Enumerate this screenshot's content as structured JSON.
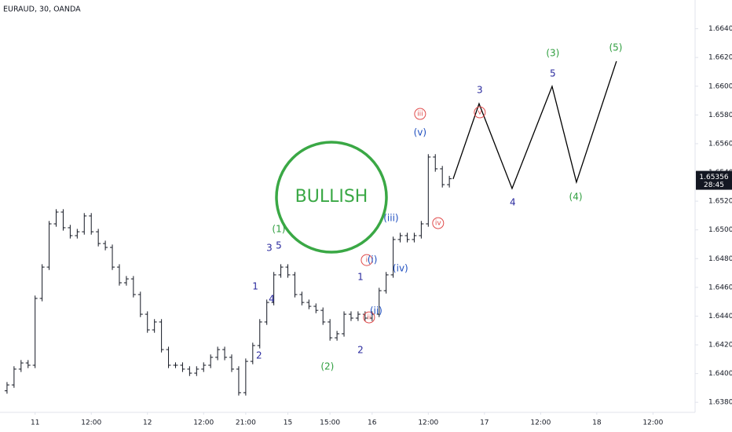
{
  "chart_data": {
    "type": "ohlc",
    "title": "EURAUD, 30, OANDA",
    "x": [
      0,
      3,
      6,
      9,
      12,
      15,
      18,
      21,
      24,
      27,
      30,
      33,
      36,
      39,
      42,
      45,
      48,
      51,
      54,
      57,
      60,
      63,
      66,
      69,
      72,
      75,
      78,
      81,
      84,
      87,
      90,
      93,
      96,
      99,
      102,
      105,
      108,
      111,
      114,
      117,
      120,
      123,
      126,
      129,
      132,
      135,
      138,
      141,
      144,
      147,
      150,
      153,
      156,
      159,
      162,
      165,
      168,
      171,
      174,
      177,
      180,
      183,
      186,
      189
    ],
    "open": [
      1.6388,
      1.63921,
      1.64031,
      1.64074,
      1.64058,
      1.64523,
      1.64741,
      1.65042,
      1.65124,
      1.65015,
      1.6496,
      1.64987,
      1.65097,
      1.64987,
      1.64905,
      1.64878,
      1.64741,
      1.64632,
      1.64659,
      1.6455,
      1.64413,
      1.64304,
      1.64359,
      1.64167,
      1.64058,
      1.64058,
      1.64031,
      1.64003,
      1.64031,
      1.64058,
      1.64113,
      1.64167,
      1.64113,
      1.64031,
      1.63867,
      1.64085,
      1.64195,
      1.64359,
      1.64495,
      1.64687,
      1.64741,
      1.64687,
      1.6455,
      1.64495,
      1.64468,
      1.6444,
      1.64359,
      1.64249,
      1.64277,
      1.64413,
      1.64386,
      1.64413,
      1.64386,
      1.64413,
      1.64577,
      1.64687,
      1.64933,
      1.6496,
      1.64933,
      1.6496,
      1.65042,
      1.65507,
      1.65425,
      1.65315
    ],
    "high": [
      1.63941,
      1.64051,
      1.64094,
      1.64094,
      1.64543,
      1.64761,
      1.65062,
      1.65144,
      1.65144,
      1.65035,
      1.65007,
      1.65117,
      1.65117,
      1.65007,
      1.64925,
      1.64898,
      1.64761,
      1.64679,
      1.64679,
      1.6457,
      1.64433,
      1.64379,
      1.64379,
      1.64187,
      1.64078,
      1.64078,
      1.64051,
      1.64051,
      1.64078,
      1.64133,
      1.64187,
      1.64187,
      1.64133,
      1.64051,
      1.64105,
      1.64215,
      1.64379,
      1.64515,
      1.64707,
      1.64761,
      1.64761,
      1.64707,
      1.6457,
      1.64515,
      1.64488,
      1.6446,
      1.64379,
      1.64297,
      1.64433,
      1.64433,
      1.64433,
      1.64433,
      1.64433,
      1.64597,
      1.64707,
      1.64953,
      1.6498,
      1.6498,
      1.6498,
      1.65062,
      1.65527,
      1.65527,
      1.65445,
      1.65376
    ],
    "low": [
      1.6386,
      1.63901,
      1.64011,
      1.64038,
      1.64038,
      1.64503,
      1.64721,
      1.65022,
      1.64995,
      1.6494,
      1.6494,
      1.64967,
      1.64967,
      1.64885,
      1.64858,
      1.64721,
      1.64612,
      1.64612,
      1.6453,
      1.64393,
      1.64284,
      1.64284,
      1.64147,
      1.64038,
      1.64038,
      1.64011,
      1.63983,
      1.63983,
      1.64011,
      1.64038,
      1.64093,
      1.64093,
      1.64011,
      1.63847,
      1.63847,
      1.64065,
      1.64175,
      1.64339,
      1.64475,
      1.64667,
      1.64667,
      1.6453,
      1.64475,
      1.64448,
      1.6442,
      1.64339,
      1.64229,
      1.64229,
      1.64257,
      1.64366,
      1.64366,
      1.64366,
      1.64366,
      1.64393,
      1.64557,
      1.64667,
      1.64913,
      1.64913,
      1.64913,
      1.6494,
      1.65022,
      1.65405,
      1.65295,
      1.65295
    ],
    "close": [
      1.63921,
      1.64031,
      1.64074,
      1.64058,
      1.64523,
      1.64741,
      1.65042,
      1.65124,
      1.65015,
      1.6496,
      1.64987,
      1.65097,
      1.64987,
      1.64905,
      1.64878,
      1.64741,
      1.64632,
      1.64659,
      1.6455,
      1.64413,
      1.64304,
      1.64359,
      1.64167,
      1.64058,
      1.64058,
      1.64031,
      1.64003,
      1.64031,
      1.64058,
      1.64113,
      1.64167,
      1.64113,
      1.64031,
      1.63867,
      1.64085,
      1.64195,
      1.64359,
      1.64495,
      1.64687,
      1.64741,
      1.64687,
      1.6455,
      1.64495,
      1.64468,
      1.6444,
      1.64359,
      1.64249,
      1.64277,
      1.64413,
      1.64386,
      1.64413,
      1.64386,
      1.64413,
      1.64577,
      1.64687,
      1.64933,
      1.6496,
      1.64933,
      1.6496,
      1.65042,
      1.65507,
      1.65425,
      1.65315,
      1.65356
    ],
    "color": "#131722",
    "projection": {
      "x": [
        190.6,
        201.7,
        215.8,
        232.9,
        243.3,
        260.4
      ],
      "values": [
        1.65354,
        1.65878,
        1.65288,
        1.65999,
        1.65332,
        1.66174
      ],
      "color": "#000000"
    },
    "xlim": [
      -3,
      294
    ],
    "ylim": [
      1.6373,
      1.666
    ],
    "xticks": [
      {
        "value": 12,
        "label": "11"
      },
      {
        "value": 36,
        "label": "12:00"
      },
      {
        "value": 60,
        "label": "12"
      },
      {
        "value": 84,
        "label": "12:00"
      },
      {
        "value": 102,
        "label": "21:00"
      },
      {
        "value": 120,
        "label": "15"
      },
      {
        "value": 138,
        "label": "15:00"
      },
      {
        "value": 156,
        "label": "16"
      },
      {
        "value": 180,
        "label": "12:00"
      },
      {
        "value": 204,
        "label": "17"
      },
      {
        "value": 228,
        "label": "12:00"
      },
      {
        "value": 252,
        "label": "18"
      },
      {
        "value": 276,
        "label": "12:00"
      }
    ],
    "yticks": [
      {
        "value": 1.638,
        "label": "1.63800"
      },
      {
        "value": 1.64,
        "label": "1.64000"
      },
      {
        "value": 1.642,
        "label": "1.64200"
      },
      {
        "value": 1.644,
        "label": "1.64400"
      },
      {
        "value": 1.646,
        "label": "1.64600"
      },
      {
        "value": 1.648,
        "label": "1.64800"
      },
      {
        "value": 1.65,
        "label": "1.65000"
      },
      {
        "value": 1.652,
        "label": "1.65200"
      },
      {
        "value": 1.654,
        "label": "1.65400"
      },
      {
        "value": 1.656,
        "label": "1.65600"
      },
      {
        "value": 1.658,
        "label": "1.65800"
      },
      {
        "value": 1.66,
        "label": "1.66000"
      },
      {
        "value": 1.662,
        "label": "1.66200"
      },
      {
        "value": 1.664,
        "label": "1.66400"
      }
    ],
    "grid": false,
    "last_price": 1.65356,
    "countdown": "28:45",
    "badge": "BULLISH",
    "annotations": [
      {
        "text": "(1)",
        "x": 116.1,
        "y": 1.65004,
        "color": "#2e9e3e",
        "circled": false
      },
      {
        "text": "3",
        "x": 112.1,
        "y": 1.64872,
        "color": "#2a2a9e",
        "circled": false
      },
      {
        "text": "5",
        "x": 116.1,
        "y": 1.64889,
        "color": "#2a2a9e",
        "circled": false
      },
      {
        "text": "1",
        "x": 106.1,
        "y": 1.64605,
        "color": "#2a2a9e",
        "circled": false
      },
      {
        "text": "4",
        "x": 113.1,
        "y": 1.64517,
        "color": "#2a2a9e",
        "circled": false
      },
      {
        "text": "2",
        "x": 107.7,
        "y": 1.64123,
        "color": "#2a2a9e",
        "circled": false
      },
      {
        "text": "(2)",
        "x": 136.9,
        "y": 1.64047,
        "color": "#2e9e3e",
        "circled": false
      },
      {
        "text": "2",
        "x": 151.0,
        "y": 1.64162,
        "color": "#2a2a9e",
        "circled": false
      },
      {
        "text": "1",
        "x": 151.0,
        "y": 1.6467,
        "color": "#2a2a9e",
        "circled": false
      },
      {
        "text": "ii",
        "x": 154.7,
        "y": 1.64391,
        "color": "#e04a4a",
        "circled": true
      },
      {
        "text": "(ii)",
        "x": 157.7,
        "y": 1.64435,
        "color": "#1f4fbf",
        "circled": false
      },
      {
        "text": "i",
        "x": 153.7,
        "y": 1.6479,
        "color": "#e04a4a",
        "circled": true
      },
      {
        "text": "(i)",
        "x": 156.1,
        "y": 1.6479,
        "color": "#1f4fbf",
        "circled": false
      },
      {
        "text": "(iv)",
        "x": 168.1,
        "y": 1.6473,
        "color": "#1f4fbf",
        "circled": false
      },
      {
        "text": "(iii)",
        "x": 164.1,
        "y": 1.6508,
        "color": "#1f4fbf",
        "circled": false
      },
      {
        "text": "iv",
        "x": 184.2,
        "y": 1.65047,
        "color": "#e04a4a",
        "circled": true
      },
      {
        "text": "(v)",
        "x": 176.5,
        "y": 1.65676,
        "color": "#1f4fbf",
        "circled": false
      },
      {
        "text": "iii",
        "x": 176.5,
        "y": 1.65807,
        "color": "#e04a4a",
        "circled": true
      },
      {
        "text": "v",
        "x": 202.0,
        "y": 1.65818,
        "color": "#e04a4a",
        "circled": true
      },
      {
        "text": "3",
        "x": 202.0,
        "y": 1.65971,
        "color": "#2a2a9e",
        "circled": false
      },
      {
        "text": "4",
        "x": 216.1,
        "y": 1.6519,
        "color": "#2a2a9e",
        "circled": false
      },
      {
        "text": "5",
        "x": 233.2,
        "y": 1.66086,
        "color": "#2a2a9e",
        "circled": false
      },
      {
        "text": "(3)",
        "x": 233.2,
        "y": 1.66228,
        "color": "#2e9e3e",
        "circled": false
      },
      {
        "text": "(4)",
        "x": 243.0,
        "y": 1.65228,
        "color": "#2e9e3e",
        "circled": false
      },
      {
        "text": "(5)",
        "x": 260.1,
        "y": 1.66267,
        "color": "#2e9e3e",
        "circled": false
      }
    ]
  }
}
